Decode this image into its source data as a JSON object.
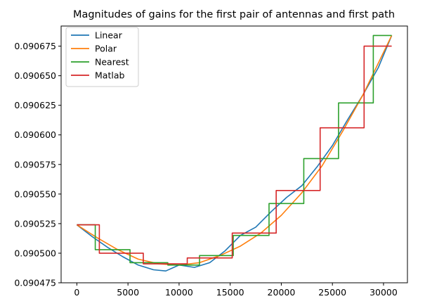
{
  "chart_data": {
    "type": "line",
    "title": "Magnitudes of gains for the first pair of antennas and first path",
    "xlabel": "",
    "ylabel": "",
    "xlim": [
      -1540,
      32340
    ],
    "ylim": [
      0.090475,
      0.090692
    ],
    "xticks": [
      0,
      5000,
      10000,
      15000,
      20000,
      25000,
      30000
    ],
    "xtick_labels": [
      "0",
      "5000",
      "10000",
      "15000",
      "20000",
      "25000",
      "30000"
    ],
    "yticks": [
      0.090475,
      0.0905,
      0.090525,
      0.09055,
      0.090575,
      0.0906,
      0.090625,
      0.09065,
      0.090675
    ],
    "ytick_labels": [
      "0.090475",
      "0.090500",
      "0.090525",
      "0.090550",
      "0.090575",
      "0.090600",
      "0.090625",
      "0.090650",
      "0.090675"
    ],
    "grid": false,
    "legend_position": "top-left",
    "series": [
      {
        "name": "Linear",
        "color": "#1f77b4",
        "x": [
          0,
          1500,
          3000,
          4500,
          6000,
          7500,
          8700,
          10000,
          11500,
          13000,
          14500,
          16000,
          17500,
          19000,
          20500,
          22000,
          23500,
          25000,
          26500,
          28000,
          29500,
          30800
        ],
        "y": [
          0.090524,
          0.090514,
          0.090505,
          0.090497,
          0.09049,
          0.090486,
          0.090485,
          0.09049,
          0.090488,
          0.090492,
          0.090502,
          0.090515,
          0.090522,
          0.090535,
          0.090547,
          0.090557,
          0.090573,
          0.090591,
          0.090613,
          0.090634,
          0.090657,
          0.090684
        ]
      },
      {
        "name": "Polar",
        "color": "#ff7f0e",
        "x": [
          0,
          2000,
          4000,
          6000,
          8000,
          10000,
          12000,
          14000,
          16000,
          18000,
          20000,
          22000,
          24000,
          26000,
          28000,
          30800
        ],
        "y": [
          0.090524,
          0.090513,
          0.090503,
          0.090495,
          0.090491,
          0.09049,
          0.090492,
          0.090498,
          0.090506,
          0.090517,
          0.090532,
          0.090551,
          0.090574,
          0.090603,
          0.090634,
          0.090684
        ]
      },
      {
        "name": "Nearest",
        "color": "#2ca02c",
        "x": [
          0,
          1800,
          1800,
          5200,
          5200,
          8900,
          8900,
          12000,
          12000,
          15300,
          15300,
          18800,
          18800,
          22200,
          22200,
          25600,
          25600,
          29000,
          29000,
          30800
        ],
        "y": [
          0.090524,
          0.090524,
          0.090503,
          0.090503,
          0.090492,
          0.090492,
          0.09049,
          0.09049,
          0.090498,
          0.090498,
          0.090515,
          0.090515,
          0.090542,
          0.090542,
          0.09058,
          0.09058,
          0.090627,
          0.090627,
          0.090684,
          0.090684
        ]
      },
      {
        "name": "Matlab",
        "color": "#d62728",
        "x": [
          0,
          2200,
          2200,
          6500,
          6500,
          10800,
          10800,
          15200,
          15200,
          19500,
          19500,
          23800,
          23800,
          28100,
          28100,
          30800
        ],
        "y": [
          0.090524,
          0.090524,
          0.0905,
          0.0905,
          0.090491,
          0.090491,
          0.090496,
          0.090496,
          0.090517,
          0.090517,
          0.090553,
          0.090553,
          0.090606,
          0.090606,
          0.090675,
          0.090675
        ]
      }
    ]
  }
}
